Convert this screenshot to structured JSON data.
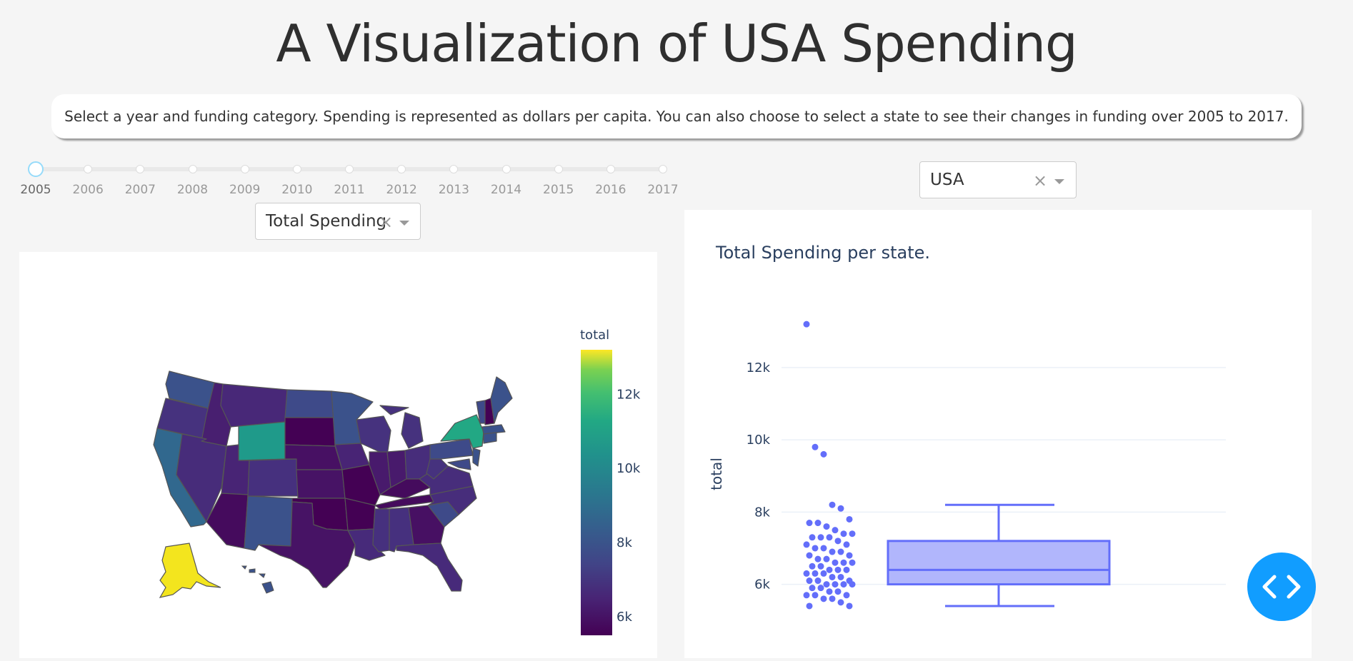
{
  "header": {
    "title": "A Visualization of USA Spending",
    "description": "Select a year and funding category. Spending is represented as dollars per capita. You can also choose to select a state to see their changes in funding over 2005 to 2017."
  },
  "year_slider": {
    "marks": [
      "2005",
      "2006",
      "2007",
      "2008",
      "2009",
      "2010",
      "2011",
      "2012",
      "2013",
      "2014",
      "2015",
      "2016",
      "2017"
    ],
    "selected": "2005"
  },
  "category_dropdown": {
    "value": "Total Spending",
    "clear_icon": "clear-icon",
    "arrow_icon": "chevron-down-icon"
  },
  "state_dropdown": {
    "value": "USA",
    "clear_icon": "clear-icon",
    "arrow_icon": "chevron-down-icon"
  },
  "map": {
    "colorbar": {
      "title": "total",
      "ticks": [
        "12k",
        "10k",
        "8k",
        "6k"
      ]
    }
  },
  "fab": {
    "icon": "code-icon"
  },
  "chart_data": [
    {
      "type": "choropleth",
      "locationmode": "USA-states",
      "colorscale": "Viridis",
      "colorbar_title": "total",
      "range": [
        5500,
        13200
      ],
      "highlights": {
        "AK": 12900,
        "WY": 9800,
        "NY": 9600,
        "CA": 7400,
        "NM": 7200,
        "WA": 7000,
        "MN": 6900,
        "ND": 6900,
        "ME": 6800,
        "HI": 6700,
        "VT": 6600,
        "MA": 6800,
        "CT": 6700
      }
    },
    {
      "type": "box",
      "title": "Total Spending per state.",
      "ylabel": "total",
      "ylim": [
        5300,
        13500
      ],
      "yticks": [
        "6k",
        "8k",
        "10k",
        "12k"
      ],
      "box": {
        "min": 5400,
        "q1": 6000,
        "median": 6400,
        "q3": 7200,
        "max": 8200,
        "color": "#636efa"
      },
      "points": [
        13200,
        9800,
        9600,
        8200,
        8100,
        7800,
        7700,
        7700,
        7600,
        7500,
        7400,
        7400,
        7300,
        7300,
        7300,
        7200,
        7100,
        7100,
        7000,
        7000,
        6900,
        6900,
        6800,
        6800,
        6700,
        6700,
        6600,
        6600,
        6600,
        6500,
        6500,
        6400,
        6400,
        6400,
        6300,
        6300,
        6300,
        6200,
        6200,
        6100,
        6100,
        6100,
        6000,
        6000,
        6000,
        6000,
        5900,
        5900,
        5800,
        5800,
        5700,
        5700,
        5700,
        5600,
        5600,
        5500,
        5400,
        5400
      ]
    }
  ]
}
